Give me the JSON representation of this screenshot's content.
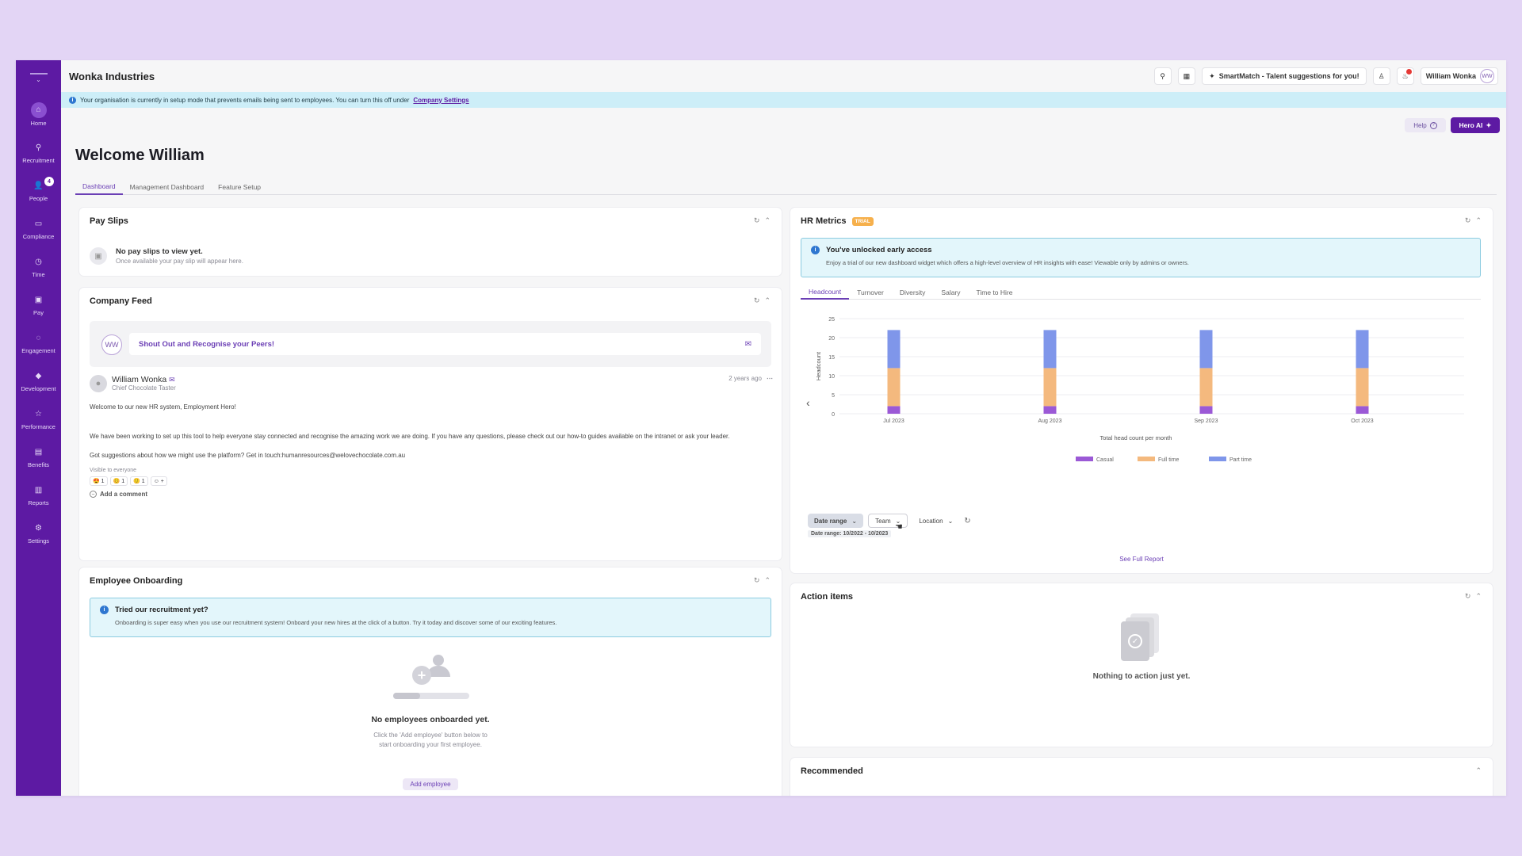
{
  "app": {
    "company": "Wonka Industries"
  },
  "nav": {
    "items": [
      {
        "label": "Home",
        "icon": "home-icon"
      },
      {
        "label": "Recruitment",
        "icon": "search-icon"
      },
      {
        "label": "People",
        "icon": "people-icon",
        "badge": "4"
      },
      {
        "label": "Compliance",
        "icon": "folder-icon"
      },
      {
        "label": "Time",
        "icon": "clock-icon"
      },
      {
        "label": "Pay",
        "icon": "wallet-icon"
      },
      {
        "label": "Engagement",
        "icon": "chat-icon"
      },
      {
        "label": "Development",
        "icon": "graduation-icon"
      },
      {
        "label": "Performance",
        "icon": "star-icon"
      },
      {
        "label": "Benefits",
        "icon": "gift-icon"
      },
      {
        "label": "Reports",
        "icon": "chart-icon"
      },
      {
        "label": "Settings",
        "icon": "gear-icon"
      }
    ]
  },
  "topbar": {
    "smartmatch": "SmartMatch - Talent suggestions for you!",
    "user_name": "William Wonka",
    "user_initials": "WW"
  },
  "banner": {
    "text": "Your organisation is currently in setup mode that prevents emails being sent to employees. You can turn this off under",
    "link": "Company Settings"
  },
  "actions": {
    "help": "Help",
    "hero_ai": "Hero AI"
  },
  "page": {
    "title": "Welcome William",
    "tabs": [
      "Dashboard",
      "Management Dashboard",
      "Feature Setup"
    ]
  },
  "payslips": {
    "title": "Pay Slips",
    "empty_title": "No pay slips to view yet.",
    "empty_sub": "Once available your pay slip will appear here."
  },
  "feed": {
    "title": "Company Feed",
    "composer_initials": "WW",
    "composer_prompt": "Shout Out and Recognise your Peers!",
    "post": {
      "author": "William Wonka",
      "role": "Chief Chocolate Taster",
      "time": "2 years ago",
      "para1": "Welcome to our new HR system, Employment Hero!",
      "para2": "We have been working to set up this tool to help everyone stay connected and recognise the amazing work we are doing. If you have any questions, please check out our how-to guides available on the intranet or ask your leader.",
      "para3": "Got suggestions about how we might use the platform? Get in touch:humanresources@welovechocolate.com.au",
      "visibility": "Visible to everyone",
      "reactions": [
        "😍 1",
        "😊 1",
        "🙂 1",
        "☺ +"
      ],
      "comment": "Add a comment"
    }
  },
  "onboarding": {
    "title": "Employee Onboarding",
    "alert_title": "Tried our recruitment yet?",
    "alert_text": "Onboarding is super easy when you use our recruitment system! Onboard your new hires at the click of a button. Try it today and discover some of our exciting features.",
    "empty_title": "No employees onboarded yet.",
    "empty_sub1": "Click the 'Add employee' button below to",
    "empty_sub2": "start onboarding your first employee.",
    "button": "Add employee"
  },
  "hr_metrics": {
    "title": "HR Metrics",
    "badge": "TRIAL",
    "alert_title": "You've unlocked early access",
    "alert_text": "Enjoy a trial of our new dashboard widget which offers a high-level overview of HR insights with ease! Viewable only by admins or owners.",
    "tabs": [
      "Headcount",
      "Turnover",
      "Diversity",
      "Salary",
      "Time to Hire"
    ],
    "filters": {
      "date_range": "Date range",
      "team": "Team",
      "location": "Location"
    },
    "date_range_note": "Date range: 10/2022 - 10/2023",
    "see_full": "See Full Report",
    "colors": {
      "Casual": "#9b59d6",
      "Full time": "#f4b97e",
      "Part time": "#7f96ea"
    }
  },
  "chart_data": {
    "type": "bar",
    "stacked": true,
    "categories": [
      "Jul 2023",
      "Aug 2023",
      "Sep 2023",
      "Oct 2023"
    ],
    "series": [
      {
        "name": "Casual",
        "values": [
          2,
          2,
          2,
          2
        ]
      },
      {
        "name": "Full time",
        "values": [
          10,
          10,
          10,
          10
        ]
      },
      {
        "name": "Part time",
        "values": [
          10,
          10,
          10,
          10
        ]
      }
    ],
    "title": "Total head count per month",
    "xlabel": "",
    "ylabel": "Headcount",
    "ylim": [
      0,
      25
    ],
    "yticks": [
      0,
      5,
      10,
      15,
      20,
      25
    ],
    "legend": "bottom",
    "grid": true
  },
  "action_items": {
    "title": "Action items",
    "empty": "Nothing to action just yet."
  },
  "recommended": {
    "title": "Recommended"
  }
}
